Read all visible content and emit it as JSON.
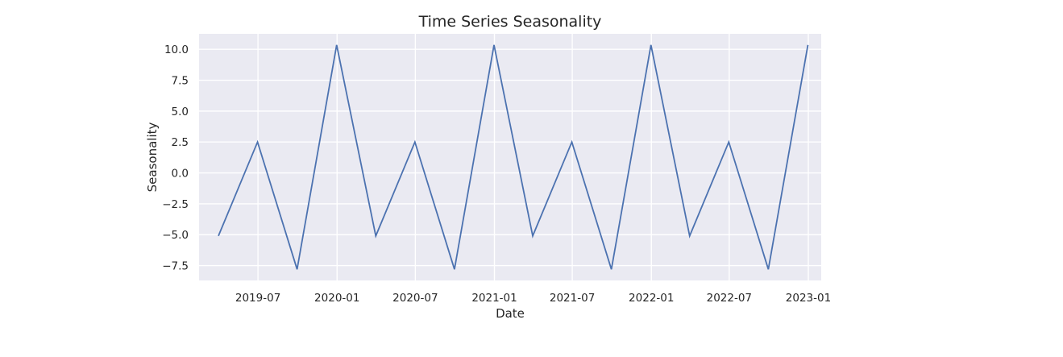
{
  "chart_data": {
    "type": "line",
    "title": "Time Series Seasonality",
    "xlabel": "Date",
    "ylabel": "Seasonality",
    "x": [
      "2019-03-31",
      "2019-06-30",
      "2019-09-30",
      "2019-12-31",
      "2020-03-31",
      "2020-06-30",
      "2020-09-30",
      "2020-12-31",
      "2021-03-31",
      "2021-06-30",
      "2021-09-30",
      "2021-12-31",
      "2022-03-31",
      "2022-06-30",
      "2022-09-30",
      "2022-12-31"
    ],
    "series": [
      {
        "values": [
          -5.1,
          2.5,
          -7.8,
          10.35,
          -5.1,
          2.5,
          -7.8,
          10.35,
          -5.1,
          2.5,
          -7.8,
          10.35,
          -5.1,
          2.5,
          -7.8,
          10.35
        ],
        "color": "#4c72b0"
      }
    ],
    "xticks": [
      {
        "date": "2019-07-01",
        "label": "2019-07"
      },
      {
        "date": "2020-01-01",
        "label": "2020-01"
      },
      {
        "date": "2020-07-01",
        "label": "2020-07"
      },
      {
        "date": "2021-01-01",
        "label": "2021-01"
      },
      {
        "date": "2021-07-01",
        "label": "2021-07"
      },
      {
        "date": "2022-01-01",
        "label": "2022-01"
      },
      {
        "date": "2022-07-01",
        "label": "2022-07"
      },
      {
        "date": "2023-01-01",
        "label": "2023-01"
      }
    ],
    "yticks": [
      {
        "value": 10.0,
        "label": "10.0"
      },
      {
        "value": 7.5,
        "label": "7.5"
      },
      {
        "value": 5.0,
        "label": "5.0"
      },
      {
        "value": 2.5,
        "label": "2.5"
      },
      {
        "value": 0.0,
        "label": "0.0"
      },
      {
        "value": -2.5,
        "label": "−2.5"
      },
      {
        "value": -5.0,
        "label": "−5.0"
      },
      {
        "value": -7.5,
        "label": "−7.5"
      }
    ],
    "xlim": [
      "2019-02-14",
      "2023-01-31"
    ],
    "ylim": [
      -8.7,
      11.25
    ],
    "grid": true,
    "background_color": "#eaeaf2",
    "grid_color": "#ffffff"
  }
}
